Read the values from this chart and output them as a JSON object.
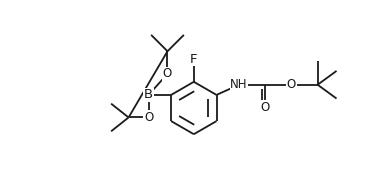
{
  "bg_color": "#ffffff",
  "line_color": "#1a1a1a",
  "line_width": 1.3,
  "font_size": 8.5,
  "figsize": [
    3.84,
    1.76
  ],
  "dpi": 100,
  "xlim": [
    0,
    10.5
  ],
  "ylim": [
    0,
    4.8
  ]
}
